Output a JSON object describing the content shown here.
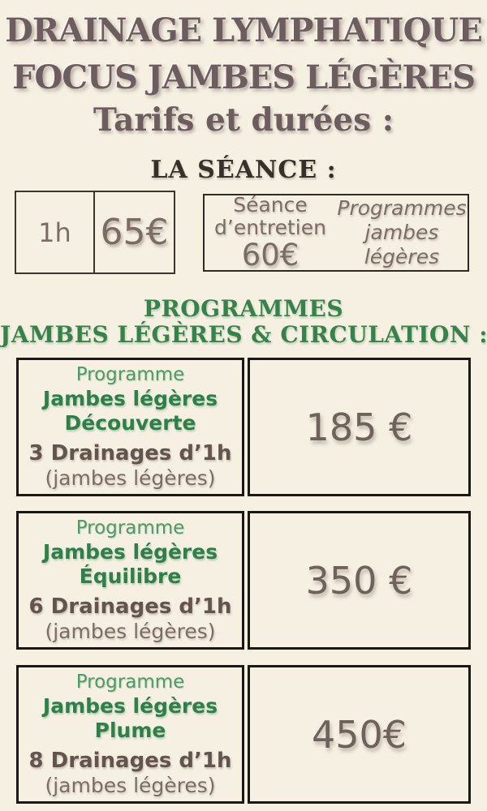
{
  "header": {
    "title_line1": "DRAINAGE LYMPHATIQUE",
    "title_line2": "FOCUS JAMBES LÉGÈRES",
    "subtitle": "Tarifs et durées :"
  },
  "seance": {
    "heading": "LA SÉANCE :",
    "rate_box": {
      "duration": "1h",
      "price": "65€"
    },
    "info_box": {
      "maintenance_line1": "Séance",
      "maintenance_line2": "d’entretien",
      "maintenance_price": "60€",
      "programs_line1": "Programmes",
      "programs_line2": "jambes",
      "programs_line3": "légères"
    }
  },
  "programs": {
    "heading_line1": "PROGRAMMES",
    "heading_line2": "JAMBES LÉGÈRES & CIRCULATION :",
    "items": [
      {
        "label": "Programme",
        "name_line1": "Jambes légères",
        "name_line2": "Découverte",
        "detail": "3 Drainages d’1h",
        "detail_sub": "(jambes légères)",
        "price": "185 €"
      },
      {
        "label": "Programme",
        "name_line1": "Jambes légères",
        "name_line2": "Équilibre",
        "detail": "6 Drainages d’1h",
        "detail_sub": "(jambes légères)",
        "price": "350 €"
      },
      {
        "label": "Programme",
        "name_line1": "Jambes légères",
        "name_line2": "Plume",
        "detail": "8 Drainages d’1h",
        "detail_sub": "(jambes légères)",
        "price": "450€"
      }
    ]
  },
  "colors": {
    "background": "#f6f0e2",
    "title_brown": "#6e5d5f",
    "heading_dark": "#35302a",
    "muted_brown": "#7b6c66",
    "detail_dark": "#63544e",
    "green_regular": "#4f9a66",
    "green_bold": "#2e7f49",
    "green_heading": "#37824b",
    "border_dark": "#191813"
  }
}
